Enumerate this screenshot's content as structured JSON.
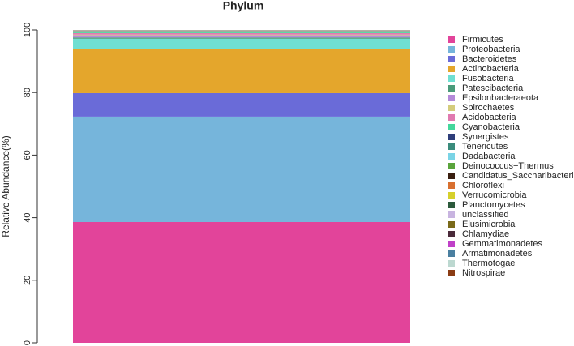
{
  "chart_data": {
    "type": "stacked_bar",
    "title": "Phylum",
    "ylabel": "Relative Abundance(%)",
    "ylim": [
      0,
      100
    ],
    "yticks": [
      0,
      20,
      40,
      60,
      80,
      100
    ],
    "series": [
      {
        "name": "Firmicutes",
        "color": "#e2449a",
        "values": [
          38.6
        ]
      },
      {
        "name": "Proteobacteria",
        "color": "#76b5db",
        "values": [
          33.7
        ]
      },
      {
        "name": "Bacteroidetes",
        "color": "#6a6bd8",
        "values": [
          7.5
        ]
      },
      {
        "name": "Actinobacteria",
        "color": "#e4a62c",
        "values": [
          14.0
        ]
      },
      {
        "name": "Fusobacteria",
        "color": "#6fdfd2",
        "values": [
          3.4
        ]
      },
      {
        "name": "Patescibacteria",
        "color": "#4a9a7a",
        "values": [
          0.4
        ]
      },
      {
        "name": "Epsilonbacteraeota",
        "color": "#b48ad8",
        "values": [
          0.7
        ]
      },
      {
        "name": "Spirochaetes",
        "color": "#d4cc7c",
        "values": [
          0.2
        ]
      },
      {
        "name": "Acidobacteria",
        "color": "#e07ab0",
        "values": [
          0.5
        ]
      },
      {
        "name": "Cyanobacteria",
        "color": "#44d79c",
        "values": [
          0.3
        ]
      },
      {
        "name": "Synergistes",
        "color": "#2e3e7a",
        "values": [
          0.1
        ]
      },
      {
        "name": "Tenericutes",
        "color": "#3a8c7c",
        "values": [
          0.1
        ]
      },
      {
        "name": "Dadabacteria",
        "color": "#7ad4e6",
        "values": [
          0.1
        ]
      },
      {
        "name": "Deinococcus−Thermus",
        "color": "#5aa43c",
        "values": [
          0.05
        ]
      },
      {
        "name": "Candidatus_Saccharibacteria",
        "color": "#3a1f10",
        "values": [
          0.05
        ]
      },
      {
        "name": "Chloroflexi",
        "color": "#d87030",
        "values": [
          0.05
        ]
      },
      {
        "name": "Verrucomicrobia",
        "color": "#d6d02c",
        "values": [
          0.05
        ]
      },
      {
        "name": "Planctomycetes",
        "color": "#2c5a3c",
        "values": [
          0.04
        ]
      },
      {
        "name": "unclassified",
        "color": "#c8b4e0",
        "values": [
          0.03
        ]
      },
      {
        "name": "Elusimicrobia",
        "color": "#7a6a1a",
        "values": [
          0.02
        ]
      },
      {
        "name": "Chlamydiae",
        "color": "#4a2a3a",
        "values": [
          0.02
        ]
      },
      {
        "name": "Gemmatimonadetes",
        "color": "#c040c8",
        "values": [
          0.02
        ]
      },
      {
        "name": "Armatimonadetes",
        "color": "#4a7fa0",
        "values": [
          0.02
        ]
      },
      {
        "name": "Thermotogae",
        "color": "#bcd8d0",
        "values": [
          0.01
        ]
      },
      {
        "name": "Nitrospirae",
        "color": "#8a3c14",
        "values": [
          0.01
        ]
      }
    ]
  }
}
